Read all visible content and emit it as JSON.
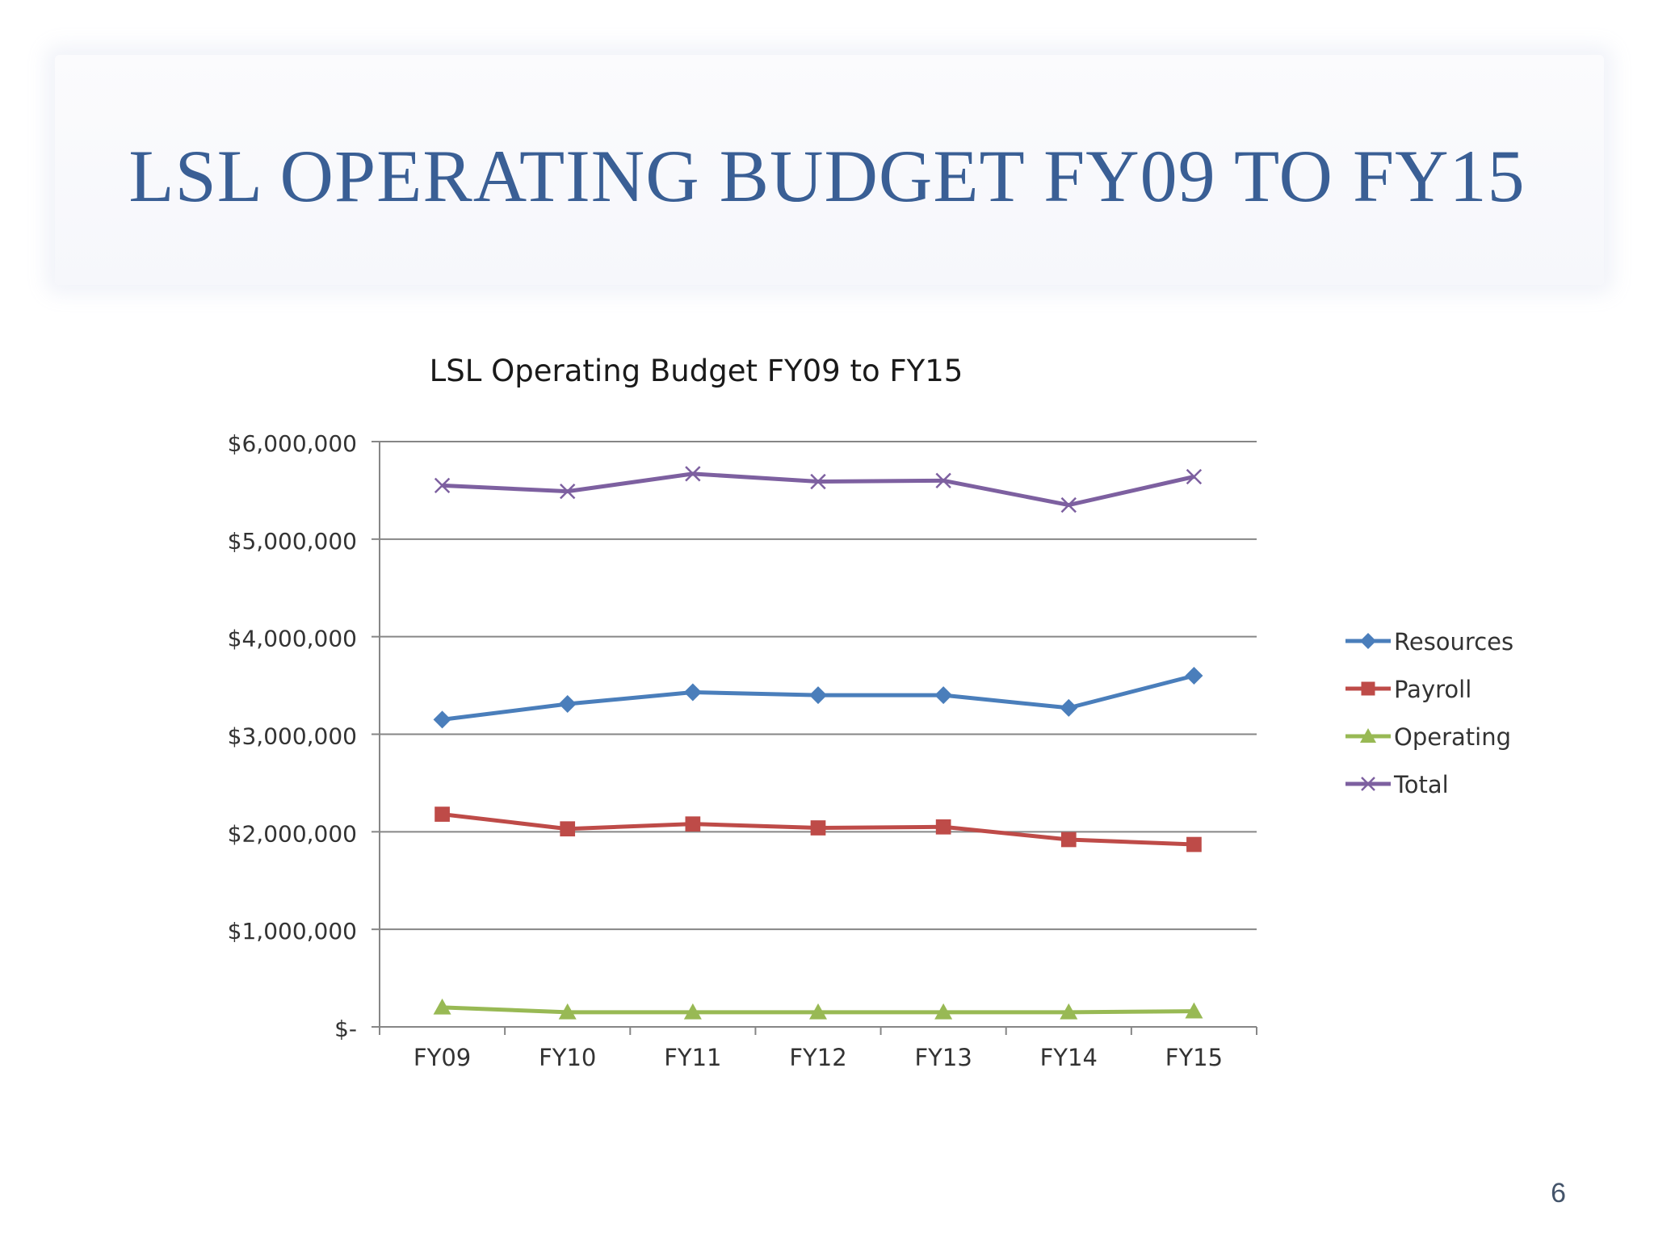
{
  "slide": {
    "title": "LSL OPERATING BUDGET FY09 TO FY15",
    "page_number": "6"
  },
  "colors": {
    "title": "#3a5f95",
    "resources": "#4a7ebb",
    "payroll": "#be4b48",
    "operating": "#98b954",
    "total": "#7d60a0",
    "gridline": "#868686",
    "text": "#333333"
  },
  "chart_data": {
    "type": "line",
    "title": "LSL Operating Budget FY09 to FY15",
    "xlabel": "",
    "ylabel": "",
    "categories": [
      "FY09",
      "FY10",
      "FY11",
      "FY12",
      "FY13",
      "FY14",
      "FY15"
    ],
    "ylim": [
      0,
      6000000
    ],
    "yticks": [
      0,
      1000000,
      2000000,
      3000000,
      4000000,
      5000000,
      6000000
    ],
    "ytick_labels": [
      "$-",
      "$1,000,000",
      "$2,000,000",
      "$3,000,000",
      "$4,000,000",
      "$5,000,000",
      "$6,000,000"
    ],
    "grid": true,
    "legend_position": "right",
    "series": [
      {
        "name": "Resources",
        "marker": "diamond",
        "color": "#4a7ebb",
        "values": [
          3150000,
          3310000,
          3430000,
          3400000,
          3400000,
          3270000,
          3600000
        ]
      },
      {
        "name": "Payroll",
        "marker": "square",
        "color": "#be4b48",
        "values": [
          2180000,
          2030000,
          2080000,
          2040000,
          2050000,
          1920000,
          1870000
        ]
      },
      {
        "name": "Operating",
        "marker": "triangle",
        "color": "#98b954",
        "values": [
          200000,
          150000,
          150000,
          150000,
          150000,
          150000,
          160000
        ]
      },
      {
        "name": "Total",
        "marker": "x",
        "color": "#7d60a0",
        "values": [
          5550000,
          5490000,
          5670000,
          5590000,
          5600000,
          5350000,
          5640000
        ]
      }
    ]
  }
}
